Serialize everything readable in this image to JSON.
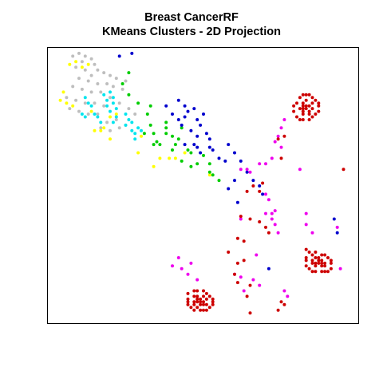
{
  "title": "Breast CancerRF",
  "subtitle": "KMeans Clusters - 2D Projection",
  "colors": {
    "cluster_gray": "#bebebe",
    "cluster_yellow": "#ffff00",
    "cluster_cyan": "#00e5ee",
    "cluster_green": "#00cd00",
    "cluster_blue": "#0000cd",
    "cluster_magenta": "#ee00ee",
    "cluster_red": "#cd0000"
  },
  "chart_data": {
    "type": "scatter",
    "title": "Breast CancerRF",
    "subtitle": "KMeans Clusters - 2D Projection",
    "xlabel": "",
    "ylabel": "",
    "axes_shown": false,
    "grid": false,
    "legend": "none",
    "xlim": [
      0,
      100
    ],
    "ylim": [
      0,
      100
    ],
    "series": [
      {
        "color": "#bebebe",
        "points": [
          [
            8,
            97
          ],
          [
            10,
            98
          ],
          [
            12,
            97
          ],
          [
            11,
            95
          ],
          [
            14,
            96
          ],
          [
            15,
            94
          ],
          [
            9,
            93
          ],
          [
            12,
            92
          ],
          [
            16,
            92
          ],
          [
            14,
            90
          ],
          [
            18,
            91
          ],
          [
            20,
            90
          ],
          [
            22,
            89
          ],
          [
            10,
            89
          ],
          [
            13,
            88
          ],
          [
            16,
            87
          ],
          [
            19,
            87
          ],
          [
            21,
            86
          ],
          [
            24,
            85
          ],
          [
            25,
            88
          ],
          [
            8,
            86
          ],
          [
            11,
            85
          ],
          [
            14,
            84
          ],
          [
            17,
            84
          ],
          [
            6,
            82
          ],
          [
            9,
            81
          ],
          [
            12,
            80
          ],
          [
            15,
            80
          ],
          [
            18,
            79
          ],
          [
            7,
            78
          ],
          [
            10,
            77
          ],
          [
            13,
            76
          ],
          [
            16,
            76
          ],
          [
            20,
            82
          ],
          [
            23,
            80
          ],
          [
            26,
            78
          ],
          [
            28,
            76
          ],
          [
            22,
            74
          ],
          [
            19,
            73
          ],
          [
            17,
            71
          ],
          [
            20,
            70
          ],
          [
            23,
            71
          ],
          [
            25,
            72
          ]
        ]
      },
      {
        "color": "#ffff00",
        "points": [
          [
            7,
            94
          ],
          [
            9,
            95
          ],
          [
            11,
            93
          ],
          [
            13,
            94
          ],
          [
            5,
            84
          ],
          [
            4,
            81
          ],
          [
            6,
            80
          ],
          [
            8,
            79
          ],
          [
            14,
            77
          ],
          [
            15,
            70
          ],
          [
            17,
            70
          ],
          [
            18,
            71
          ],
          [
            20,
            75
          ],
          [
            22,
            76
          ],
          [
            20,
            67
          ],
          [
            29,
            62
          ],
          [
            30,
            68
          ],
          [
            34,
            57
          ],
          [
            36,
            60
          ],
          [
            39,
            60
          ],
          [
            41,
            60
          ],
          [
            44,
            62
          ],
          [
            52,
            54
          ]
        ]
      },
      {
        "color": "#00e5ee",
        "points": [
          [
            18,
            83
          ],
          [
            20,
            84
          ],
          [
            21,
            82
          ],
          [
            19,
            81
          ],
          [
            21,
            80
          ],
          [
            19,
            79
          ],
          [
            22,
            78
          ],
          [
            20,
            77
          ],
          [
            12,
            82
          ],
          [
            13,
            80
          ],
          [
            14,
            79
          ],
          [
            21,
            73
          ],
          [
            22,
            75
          ],
          [
            25,
            76
          ],
          [
            26,
            74
          ],
          [
            27,
            73
          ],
          [
            25,
            72
          ],
          [
            27,
            70
          ],
          [
            28,
            69
          ],
          [
            30,
            70
          ],
          [
            28,
            67
          ],
          [
            29,
            71
          ],
          [
            11,
            76
          ],
          [
            12,
            75
          ],
          [
            15,
            76
          ],
          [
            16,
            75
          ],
          [
            17,
            73
          ]
        ]
      },
      {
        "color": "#00cd00",
        "points": [
          [
            26,
            91
          ],
          [
            24,
            87
          ],
          [
            26,
            83
          ],
          [
            29,
            80
          ],
          [
            33,
            79
          ],
          [
            32,
            76
          ],
          [
            33,
            72
          ],
          [
            34,
            69
          ],
          [
            31,
            69
          ],
          [
            35,
            66
          ],
          [
            38,
            73
          ],
          [
            38,
            69
          ],
          [
            36,
            65
          ],
          [
            40,
            63
          ],
          [
            34,
            65
          ],
          [
            41,
            65
          ],
          [
            42,
            67
          ],
          [
            43,
            71
          ],
          [
            38,
            71
          ],
          [
            40,
            68
          ],
          [
            45,
            63
          ],
          [
            43,
            59
          ],
          [
            46,
            57
          ],
          [
            48,
            58
          ],
          [
            46,
            62
          ],
          [
            50,
            61
          ],
          [
            52,
            58
          ],
          [
            52,
            55
          ],
          [
            53,
            54
          ],
          [
            55,
            52
          ]
        ]
      },
      {
        "color": "#0000cd",
        "points": [
          [
            23,
            97
          ],
          [
            27,
            98
          ],
          [
            38,
            79
          ],
          [
            42,
            81
          ],
          [
            40,
            76
          ],
          [
            42,
            74
          ],
          [
            43,
            72
          ],
          [
            44,
            75
          ],
          [
            44,
            79
          ],
          [
            45,
            77
          ],
          [
            47,
            78
          ],
          [
            48,
            74
          ],
          [
            50,
            76
          ],
          [
            49,
            72
          ],
          [
            51,
            69
          ],
          [
            46,
            70
          ],
          [
            48,
            68
          ],
          [
            52,
            67
          ],
          [
            53,
            63
          ],
          [
            55,
            60
          ],
          [
            52,
            64
          ],
          [
            48,
            64
          ],
          [
            44,
            65
          ],
          [
            47,
            65
          ],
          [
            49,
            62
          ],
          [
            58,
            65
          ],
          [
            60,
            62
          ],
          [
            62,
            59
          ],
          [
            57,
            59
          ],
          [
            64,
            55
          ],
          [
            60,
            52
          ],
          [
            58,
            49
          ],
          [
            61,
            44
          ],
          [
            66,
            52
          ],
          [
            68,
            50
          ],
          [
            69,
            47
          ],
          [
            92,
            38
          ],
          [
            93,
            33
          ],
          [
            71,
            20
          ]
        ]
      },
      {
        "color": "#ee00ee",
        "points": [
          [
            75,
            71
          ],
          [
            76,
            74
          ],
          [
            73,
            66
          ],
          [
            74,
            68
          ],
          [
            75,
            64
          ],
          [
            72,
            60
          ],
          [
            70,
            58
          ],
          [
            68,
            58
          ],
          [
            65,
            55
          ],
          [
            62,
            56
          ],
          [
            64,
            56
          ],
          [
            70,
            47
          ],
          [
            71,
            45
          ],
          [
            72,
            40
          ],
          [
            72,
            38
          ],
          [
            74,
            33
          ],
          [
            73,
            36
          ],
          [
            70,
            40
          ],
          [
            73,
            41
          ],
          [
            83,
            40
          ],
          [
            83,
            36
          ],
          [
            85,
            33
          ],
          [
            93,
            35
          ],
          [
            81,
            56
          ],
          [
            62,
            38
          ],
          [
            67,
            25
          ],
          [
            40,
            21
          ],
          [
            42,
            24
          ],
          [
            43,
            20
          ],
          [
            45,
            18
          ],
          [
            46,
            22
          ],
          [
            48,
            16
          ],
          [
            60,
            18
          ],
          [
            62,
            17
          ],
          [
            63,
            12
          ],
          [
            66,
            16
          ],
          [
            68,
            14
          ],
          [
            94,
            20
          ],
          [
            76,
            12
          ],
          [
            77,
            10
          ]
        ]
      },
      {
        "color": "#cd0000",
        "points": [
          [
            76,
            68
          ],
          [
            75,
            60
          ],
          [
            69,
            51
          ],
          [
            68,
            48
          ],
          [
            64,
            48
          ],
          [
            66,
            50
          ],
          [
            62,
            39
          ],
          [
            65,
            38
          ],
          [
            68,
            37
          ],
          [
            70,
            35
          ],
          [
            71,
            33
          ],
          [
            63,
            30
          ],
          [
            61,
            31
          ],
          [
            58,
            26
          ],
          [
            63,
            23
          ],
          [
            61,
            22
          ],
          [
            60,
            18
          ],
          [
            61,
            15
          ],
          [
            65,
            14
          ],
          [
            64,
            10
          ],
          [
            75,
            8
          ],
          [
            76,
            7
          ],
          [
            74,
            5
          ],
          [
            65,
            4
          ],
          [
            95,
            56
          ],
          [
            74,
            67
          ],
          [
            80,
            80
          ],
          [
            81,
            82
          ],
          [
            82,
            83
          ],
          [
            83,
            83
          ],
          [
            84,
            83
          ],
          [
            85,
            82
          ],
          [
            86,
            81
          ],
          [
            87,
            80
          ],
          [
            87,
            79
          ],
          [
            87,
            77
          ],
          [
            86,
            76
          ],
          [
            85,
            75
          ],
          [
            84,
            74
          ],
          [
            82,
            74
          ],
          [
            81,
            74
          ],
          [
            80,
            75
          ],
          [
            79,
            77
          ],
          [
            79,
            79
          ],
          [
            82,
            80
          ],
          [
            83,
            81
          ],
          [
            85,
            80
          ],
          [
            85,
            78
          ],
          [
            84,
            76
          ],
          [
            82,
            76
          ],
          [
            81,
            78
          ],
          [
            83,
            78
          ],
          [
            83,
            79
          ],
          [
            84,
            79
          ],
          [
            84,
            77
          ],
          [
            82,
            77
          ],
          [
            82,
            78
          ],
          [
            82,
            79
          ],
          [
            83,
            27
          ],
          [
            84,
            26
          ],
          [
            86,
            26
          ],
          [
            88,
            25
          ],
          [
            89,
            25
          ],
          [
            90,
            24
          ],
          [
            91,
            23
          ],
          [
            91,
            22
          ],
          [
            91,
            20
          ],
          [
            90,
            19
          ],
          [
            89,
            19
          ],
          [
            88,
            19
          ],
          [
            86,
            19
          ],
          [
            85,
            19
          ],
          [
            84,
            20
          ],
          [
            83,
            21
          ],
          [
            83,
            23
          ],
          [
            83,
            24
          ],
          [
            85,
            25
          ],
          [
            88,
            23
          ],
          [
            89,
            22
          ],
          [
            89,
            21
          ],
          [
            88,
            21
          ],
          [
            86,
            21
          ],
          [
            85,
            22
          ],
          [
            85,
            23
          ],
          [
            87,
            23
          ],
          [
            88,
            22
          ],
          [
            87,
            22
          ],
          [
            86,
            22
          ],
          [
            86,
            24
          ],
          [
            87,
            24
          ],
          [
            45,
            11
          ],
          [
            47,
            12
          ],
          [
            48,
            12
          ],
          [
            50,
            12
          ],
          [
            51,
            11
          ],
          [
            52,
            10
          ],
          [
            53,
            9
          ],
          [
            53,
            8
          ],
          [
            53,
            7
          ],
          [
            52,
            6
          ],
          [
            51,
            5
          ],
          [
            50,
            5
          ],
          [
            49,
            5
          ],
          [
            47,
            5
          ],
          [
            46,
            6
          ],
          [
            45,
            7
          ],
          [
            45,
            8
          ],
          [
            45,
            9
          ],
          [
            47,
            10
          ],
          [
            48,
            10
          ],
          [
            50,
            10
          ],
          [
            51,
            9
          ],
          [
            51,
            7
          ],
          [
            50,
            7
          ],
          [
            48,
            6
          ],
          [
            47,
            7
          ],
          [
            47,
            8
          ],
          [
            48,
            9
          ],
          [
            49,
            9
          ],
          [
            49,
            8
          ],
          [
            49,
            7
          ],
          [
            48,
            8
          ],
          [
            50,
            8
          ]
        ]
      }
    ]
  }
}
